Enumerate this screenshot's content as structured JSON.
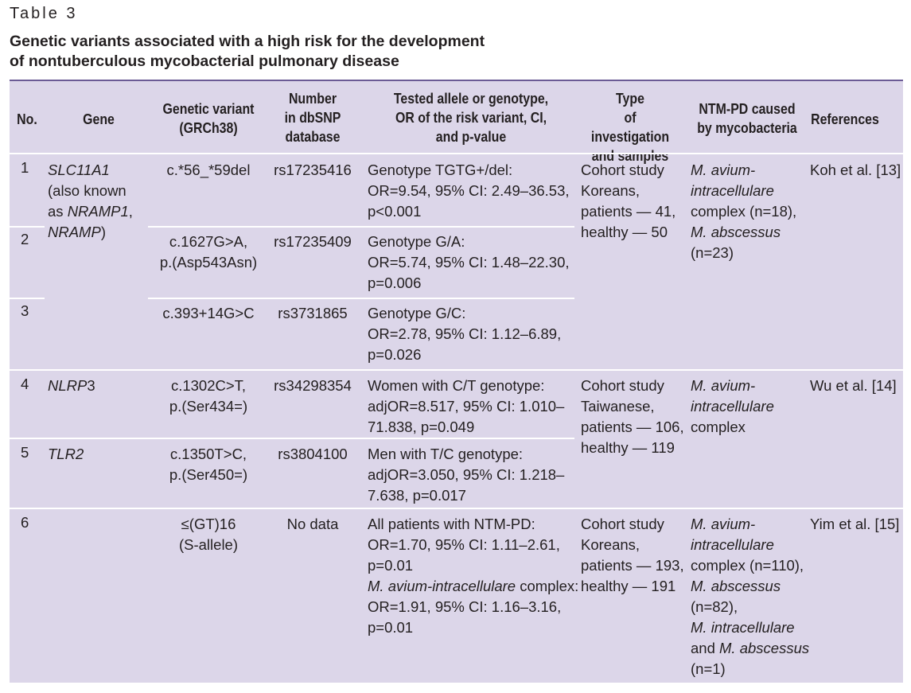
{
  "table_label": "Table 3",
  "title": {
    "line1": "Genetic variants associated with a high risk for the development",
    "line2": "of nontuberculous mycobacterial pulmonary disease"
  },
  "headers": {
    "no": "No.",
    "gene": "Gene",
    "variant": [
      "Genetic variant",
      "(GRCh38)"
    ],
    "dbsnp": [
      "Number",
      "in dbSNP",
      "database"
    ],
    "allele": [
      "Tested allele or genotype,",
      "OR of the risk variant, CI,",
      "and p-value"
    ],
    "type": [
      "Type",
      "of investigation",
      "and samples"
    ],
    "ntm": [
      "NTM-PD caused",
      "by mycobacteria"
    ],
    "refs": "References"
  },
  "rows": [
    {
      "no": "1",
      "variant": [
        "c.*56_*59del"
      ],
      "dbsnp": "rs17235416",
      "allele": [
        "Genotype TGTG+/del:",
        "OR=9.54, 95% CI: 2.49–36.53,",
        "p<0.001"
      ]
    },
    {
      "no": "2",
      "variant": [
        "c.1627G>A,",
        "p.(Asp543Asn)"
      ],
      "dbsnp": "rs17235409",
      "allele": [
        "Genotype G/A:",
        "OR=5.74, 95% CI: 1.48–22.30,",
        "p=0.006"
      ]
    },
    {
      "no": "3",
      "variant": [
        "c.393+14G>C"
      ],
      "dbsnp": "rs3731865",
      "allele": [
        "Genotype G/C:",
        "OR=2.78, 95% CI: 1.12–6.89,",
        "p=0.026"
      ]
    },
    {
      "no": "4",
      "variant": [
        "c.1302C>T,",
        "p.(Ser434=)"
      ],
      "dbsnp": "rs34298354",
      "allele": [
        "Women with C/T genotype:",
        "adjOR=8.517, 95% CI: 1.010–",
        "71.838, p=0.049"
      ]
    },
    {
      "no": "5",
      "variant": [
        "c.1350T>C,",
        "p.(Ser450=)"
      ],
      "dbsnp": "rs3804100",
      "allele": [
        "Men with T/C genotype:",
        "adjOR=3.050, 95% CI: 1.218–",
        "7.638, p=0.017"
      ]
    },
    {
      "no": "6",
      "variant": [
        "≤(GT)16",
        "(S-allele)"
      ],
      "dbsnp": "No data",
      "allele": [
        "All patients with NTM-PD:",
        "OR=1.70, 95% CI: 1.11–2.61,",
        "p=0.01",
        "M. avium-intracellulare complex:",
        "OR=1.91, 95% CI: 1.16–3.16,",
        "p=0.01"
      ]
    }
  ],
  "genes": {
    "g1": {
      "a": "SLC11A1",
      "b": "(also known",
      "c": "as ",
      "c_it": "NRAMP1",
      "c_end": ",",
      "d_it": "NRAMP",
      "d_end": ")"
    },
    "g4": {
      "it": "NLRP",
      "end": "3"
    },
    "g5": {
      "it": "TLR2"
    }
  },
  "groups": [
    {
      "type": [
        "Cohort study",
        "Koreans,",
        "patients — 41,",
        "healthy — 50"
      ],
      "refs": "Koh et al. [13]"
    },
    {
      "type": [
        "Cohort study",
        "Taiwanese,",
        "patients — 106,",
        "healthy — 119"
      ],
      "refs": "Wu et al. [14]"
    },
    {
      "type": [
        "Cohort study",
        "Koreans,",
        "patients — 193,",
        "healthy — 191"
      ],
      "refs": "Yim et al. [15]"
    }
  ],
  "ntm": {
    "g1": [
      "M. avium-",
      "intracellulare",
      "complex (n=18),",
      "M. abscessus",
      "(n=23)"
    ],
    "g2": [
      "M. avium-",
      "intracellulare",
      "complex"
    ],
    "g3": [
      "M. avium-",
      "intracellulare",
      "complex (n=110),",
      "M. abscessus",
      "(n=82),",
      "M. intracellulare",
      "and ",
      "M. abscessus",
      "(n=1)"
    ]
  },
  "row6_allele_italic": "M. avium-intracellulare",
  "row6_allele_rest": " complex:",
  "colors": {
    "panel": "#dcd6e9",
    "rule": "#6b5b95",
    "divider": "#ffffff",
    "text": "#231f20"
  }
}
